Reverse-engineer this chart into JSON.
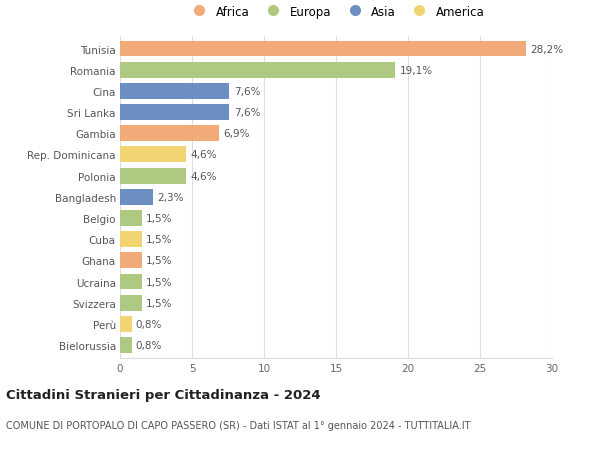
{
  "countries": [
    "Tunisia",
    "Romania",
    "Cina",
    "Sri Lanka",
    "Gambia",
    "Rep. Dominicana",
    "Polonia",
    "Bangladesh",
    "Belgio",
    "Cuba",
    "Ghana",
    "Ucraina",
    "Svizzera",
    "Perù",
    "Bielorussia"
  ],
  "values": [
    28.2,
    19.1,
    7.6,
    7.6,
    6.9,
    4.6,
    4.6,
    2.3,
    1.5,
    1.5,
    1.5,
    1.5,
    1.5,
    0.8,
    0.8
  ],
  "labels": [
    "28,2%",
    "19,1%",
    "7,6%",
    "7,6%",
    "6,9%",
    "4,6%",
    "4,6%",
    "2,3%",
    "1,5%",
    "1,5%",
    "1,5%",
    "1,5%",
    "1,5%",
    "0,8%",
    "0,8%"
  ],
  "continents": [
    "Africa",
    "Europa",
    "Asia",
    "Asia",
    "Africa",
    "America",
    "Europa",
    "Asia",
    "Europa",
    "America",
    "Africa",
    "Europa",
    "Europa",
    "America",
    "Europa"
  ],
  "colors": {
    "Africa": "#F2AA78",
    "Europa": "#AECA82",
    "Asia": "#6B8FC2",
    "America": "#F2D472"
  },
  "legend_order": [
    "Africa",
    "Europa",
    "Asia",
    "America"
  ],
  "title": "Cittadini Stranieri per Cittadinanza - 2024",
  "subtitle": "COMUNE DI PORTOPALO DI CAPO PASSERO (SR) - Dati ISTAT al 1° gennaio 2024 - TUTTITALIA.IT",
  "xlim": [
    0,
    30
  ],
  "xticks": [
    0,
    5,
    10,
    15,
    20,
    25,
    30
  ],
  "background_color": "#ffffff",
  "grid_color": "#dddddd",
  "bar_height": 0.75,
  "label_fontsize": 7.5,
  "tick_fontsize": 7.5,
  "legend_fontsize": 8.5,
  "title_fontsize": 9.5,
  "subtitle_fontsize": 7.0
}
